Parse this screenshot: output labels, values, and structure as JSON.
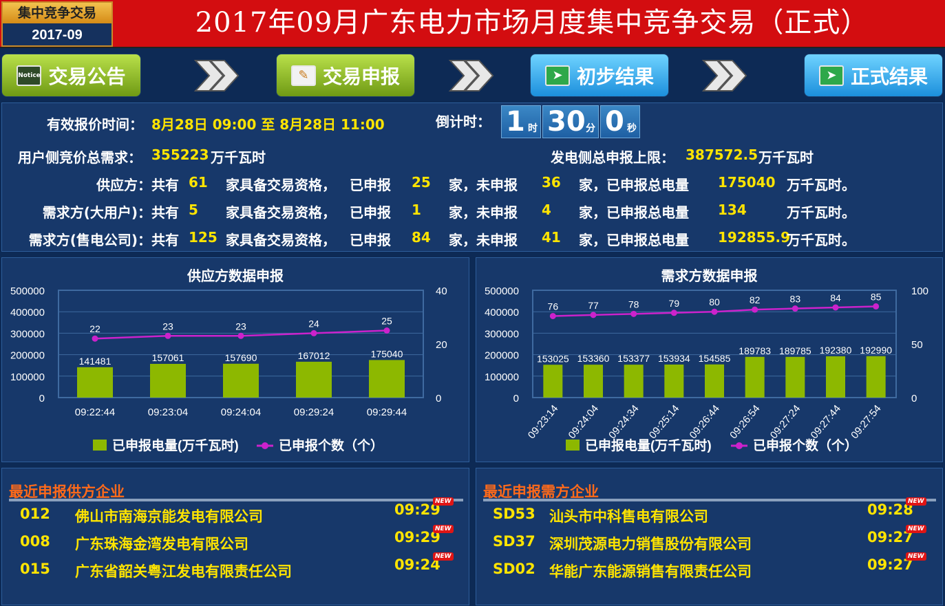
{
  "header": {
    "badge_top": "集中竞争交易",
    "badge_month": "2017-09",
    "title": "2017年09月广东电力市场月度集中竞争交易（正式）"
  },
  "steps": [
    {
      "label": "交易公告",
      "icon": "notice-board-icon",
      "icon_text": "Notice"
    },
    {
      "label": "交易申报",
      "icon": "document-edit-icon"
    },
    {
      "label": "初步结果",
      "icon": "result-icon"
    },
    {
      "label": "正式结果",
      "icon": "result-icon"
    }
  ],
  "info": {
    "time_label": "有效报价时间：",
    "time_value": "8月28日 09:00 至 8月28日 11:00",
    "countdown_label": "倒计时：",
    "countdown": {
      "h": "1",
      "h_unit": "时",
      "m": "30",
      "m_unit": "分",
      "s": "0",
      "s_unit": "秒"
    },
    "demand_label": "用户侧竞价总需求：",
    "demand_value": "355223",
    "demand_unit": "万千瓦时",
    "gen_label": "发电侧总申报上限：",
    "gen_value": "387572.5",
    "gen_unit": "万千瓦时",
    "txt_total": "共有",
    "txt_qual": "家具备交易资格，",
    "txt_declared": "已申报",
    "txt_notdeclared": "家，未申报",
    "txt_totalenergy": "家，已申报总电量",
    "rows": [
      {
        "label": "供应方：",
        "total": "61",
        "declared": "25",
        "undeclared": "36",
        "energy": "175040",
        "unit": "万千瓦时。"
      },
      {
        "label": "需求方(大用户)：",
        "total": "5",
        "declared": "1",
        "undeclared": "4",
        "energy": "134",
        "unit": "万千瓦时。"
      },
      {
        "label": "需求方(售电公司)：",
        "total": "125",
        "declared": "84",
        "undeclared": "41",
        "energy": "192855.9",
        "unit": "万千瓦时。"
      }
    ]
  },
  "chart_data": [
    {
      "type": "bar",
      "title": "供应方数据申报",
      "categories": [
        "09:22:44",
        "09:23:04",
        "09:24:04",
        "09:29:24",
        "09:29:44"
      ],
      "series": [
        {
          "name": "已申报电量(万千瓦时)",
          "type": "bar",
          "axis": "left",
          "color": "#8db800",
          "values": [
            141481,
            157061,
            157690,
            167012,
            175040
          ]
        },
        {
          "name": "已申报个数（个）",
          "type": "line",
          "axis": "right",
          "color": "#cc22cc",
          "values": [
            22,
            23,
            23,
            24,
            25
          ]
        }
      ],
      "y_left": {
        "range": [
          0,
          500000
        ],
        "ticks": [
          0,
          100000,
          200000,
          300000,
          400000,
          500000
        ]
      },
      "y_right": {
        "range": [
          0,
          40
        ],
        "ticks": [
          0,
          20,
          40
        ]
      },
      "legend": "bottom",
      "grid": true
    },
    {
      "type": "bar",
      "title": "需求方数据申报",
      "categories": [
        "09:23:14",
        "09:24:04",
        "09:24:34",
        "09:25:14",
        "09:26:44",
        "09:26:54",
        "09:27:24",
        "09:27:44",
        "09:27:54"
      ],
      "series": [
        {
          "name": "已申报电量(万千瓦时)",
          "type": "bar",
          "axis": "left",
          "color": "#8db800",
          "values": [
            153025,
            153360,
            153377,
            153934,
            154585,
            189783,
            189785,
            192380,
            192990
          ]
        },
        {
          "name": "已申报个数（个）",
          "type": "line",
          "axis": "right",
          "color": "#cc22cc",
          "values": [
            76,
            77,
            78,
            79,
            80,
            82,
            83,
            84,
            85
          ]
        }
      ],
      "y_left": {
        "range": [
          0,
          500000
        ],
        "ticks": [
          0,
          100000,
          200000,
          300000,
          400000,
          500000
        ]
      },
      "y_right": {
        "range": [
          0,
          100
        ],
        "ticks": [
          0,
          50,
          100
        ]
      },
      "legend": "bottom",
      "grid": true
    }
  ],
  "lists": {
    "new_tag": "NEW",
    "supply": {
      "title": "最近申报供方企业",
      "items": [
        {
          "code": "012",
          "name": "佛山市南海京能发电有限公司",
          "time": "09:29"
        },
        {
          "code": "008",
          "name": "广东珠海金湾发电有限公司",
          "time": "09:29"
        },
        {
          "code": "015",
          "name": "广东省韶关粤江发电有限责任公司",
          "time": "09:24"
        }
      ]
    },
    "demand": {
      "title": "最近申报需方企业",
      "items": [
        {
          "code": "SD53",
          "name": "汕头市中科售电有限公司",
          "time": "09:28"
        },
        {
          "code": "SD37",
          "name": "深圳茂源电力销售股份有限公司",
          "time": "09:27"
        },
        {
          "code": "SD02",
          "name": "华能广东能源销售有限责任公司",
          "time": "09:27"
        }
      ]
    }
  }
}
